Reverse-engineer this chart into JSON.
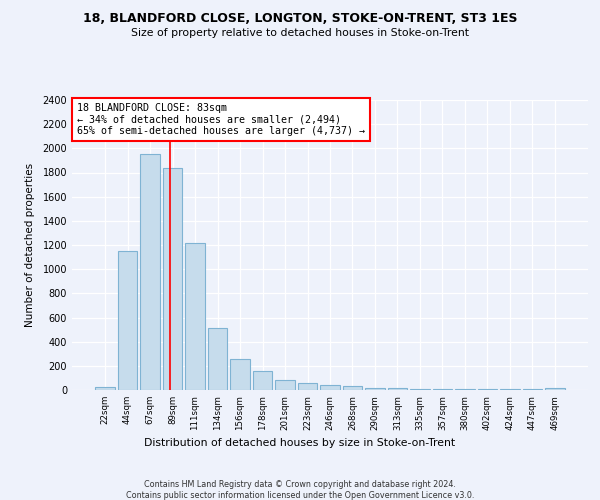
{
  "title1": "18, BLANDFORD CLOSE, LONGTON, STOKE-ON-TRENT, ST3 1ES",
  "title2": "Size of property relative to detached houses in Stoke-on-Trent",
  "xlabel": "Distribution of detached houses by size in Stoke-on-Trent",
  "ylabel": "Number of detached properties",
  "categories": [
    "22sqm",
    "44sqm",
    "67sqm",
    "89sqm",
    "111sqm",
    "134sqm",
    "156sqm",
    "178sqm",
    "201sqm",
    "223sqm",
    "246sqm",
    "268sqm",
    "290sqm",
    "313sqm",
    "335sqm",
    "357sqm",
    "380sqm",
    "402sqm",
    "424sqm",
    "447sqm",
    "469sqm"
  ],
  "values": [
    25,
    1150,
    1950,
    1840,
    1220,
    510,
    260,
    155,
    80,
    55,
    40,
    35,
    20,
    15,
    5,
    5,
    5,
    5,
    5,
    5,
    15
  ],
  "bar_color": "#c6dcec",
  "bar_edge_color": "#7fb3d3",
  "vline_color": "red",
  "vline_position": 2.87,
  "annotation_text": "18 BLANDFORD CLOSE: 83sqm\n← 34% of detached houses are smaller (2,494)\n65% of semi-detached houses are larger (4,737) →",
  "annotation_box_color": "white",
  "annotation_box_edge_color": "red",
  "ylim": [
    0,
    2400
  ],
  "yticks": [
    0,
    200,
    400,
    600,
    800,
    1000,
    1200,
    1400,
    1600,
    1800,
    2000,
    2200,
    2400
  ],
  "footer1": "Contains HM Land Registry data © Crown copyright and database right 2024.",
  "footer2": "Contains public sector information licensed under the Open Government Licence v3.0.",
  "bg_color": "#eef2fb",
  "grid_color": "white"
}
